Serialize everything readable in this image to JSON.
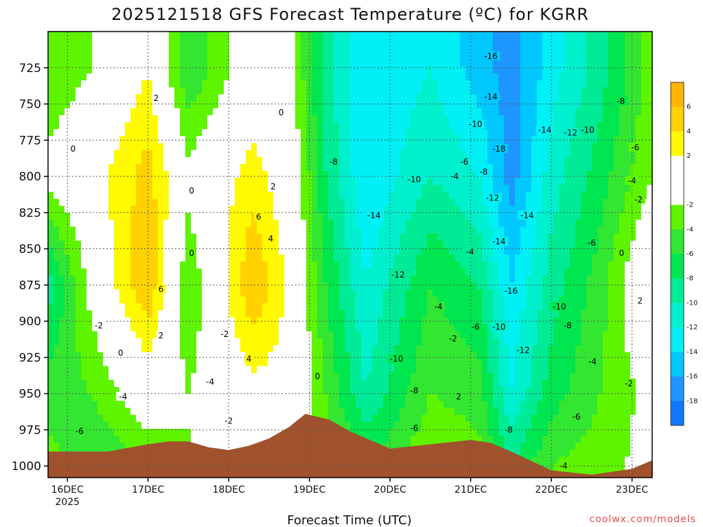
{
  "chart_data": {
    "type": "heatmap",
    "title": "2025121518 GFS Forecast Temperature (ºC) for KGRR",
    "xlabel": "Forecast Time (UTC)",
    "credit": "coolwx.com/models",
    "y_ticks": [
      725,
      750,
      775,
      800,
      825,
      850,
      875,
      900,
      925,
      950,
      975,
      1000
    ],
    "y_range": [
      700,
      1008
    ],
    "x_ticks": [
      {
        "label": "16DEC",
        "label2": "2025",
        "day": 0
      },
      {
        "label": "17DEC",
        "day": 1
      },
      {
        "label": "18DEC",
        "day": 2
      },
      {
        "label": "19DEC",
        "day": 3
      },
      {
        "label": "20DEC",
        "day": 4
      },
      {
        "label": "21DEC",
        "day": 5
      },
      {
        "label": "22DEC",
        "day": 6
      },
      {
        "label": "23DEC",
        "day": 7
      }
    ],
    "x_range_days": [
      -0.24,
      7.25
    ],
    "colorbar": [
      {
        "min": 6,
        "max": 8,
        "color": "#ffb400"
      },
      {
        "min": 4,
        "max": 6,
        "color": "#ffd200"
      },
      {
        "min": 2,
        "max": 4,
        "color": "#fffa00"
      },
      {
        "min": 0,
        "max": 2,
        "color": "#ffffff"
      },
      {
        "min": -2,
        "max": 0,
        "color": "#ffffff"
      },
      {
        "min": -4,
        "max": -2,
        "color": "#5ef400"
      },
      {
        "min": -6,
        "max": -4,
        "color": "#32e632"
      },
      {
        "min": -8,
        "max": -6,
        "color": "#00e650"
      },
      {
        "min": -10,
        "max": -8,
        "color": "#00eb96"
      },
      {
        "min": -12,
        "max": -10,
        "color": "#00f0cd"
      },
      {
        "min": -14,
        "max": -12,
        "color": "#00f0f5"
      },
      {
        "min": -16,
        "max": -14,
        "color": "#00c8ff"
      },
      {
        "min": -18,
        "max": -16,
        "color": "#1e96ff"
      },
      {
        "min": -20,
        "max": -18,
        "color": "#0f78ff"
      }
    ],
    "colorbar_labels": [
      6,
      4,
      2,
      -2,
      -4,
      -6,
      -8,
      -10,
      -12,
      -14,
      -16,
      -18
    ],
    "surface_pressure": [
      {
        "day": -0.24,
        "p": 990
      },
      {
        "day": 0.5,
        "p": 990
      },
      {
        "day": 1.0,
        "p": 985
      },
      {
        "day": 1.25,
        "p": 983
      },
      {
        "day": 1.5,
        "p": 983
      },
      {
        "day": 1.75,
        "p": 987
      },
      {
        "day": 2.0,
        "p": 989
      },
      {
        "day": 2.25,
        "p": 986
      },
      {
        "day": 2.5,
        "p": 981
      },
      {
        "day": 2.75,
        "p": 973
      },
      {
        "day": 2.95,
        "p": 964
      },
      {
        "day": 3.25,
        "p": 968
      },
      {
        "day": 3.5,
        "p": 976
      },
      {
        "day": 4.0,
        "p": 988
      },
      {
        "day": 4.5,
        "p": 985
      },
      {
        "day": 5.0,
        "p": 982
      },
      {
        "day": 5.25,
        "p": 984
      },
      {
        "day": 5.5,
        "p": 990
      },
      {
        "day": 6.0,
        "p": 1003
      },
      {
        "day": 6.5,
        "p": 1006
      },
      {
        "day": 7.0,
        "p": 1002
      },
      {
        "day": 7.25,
        "p": 996
      }
    ],
    "temperature_columns": [
      {
        "day": -0.24,
        "p": [
          725,
          800,
          875,
          950,
          1000
        ],
        "t": [
          -4,
          -1,
          -9,
          -5,
          -3
        ]
      },
      {
        "day": 0.3,
        "p": [
          725,
          800,
          875,
          950,
          1000
        ],
        "t": [
          -2,
          1,
          -1,
          -4,
          -6
        ]
      },
      {
        "day": 1.0,
        "p": [
          725,
          800,
          875,
          950,
          1000
        ],
        "t": [
          2,
          5,
          6,
          0,
          -4
        ]
      },
      {
        "day": 1.5,
        "p": [
          725,
          800,
          875,
          950,
          1000
        ],
        "t": [
          -6,
          -1,
          -4,
          -2,
          -2
        ]
      },
      {
        "day": 2.3,
        "p": [
          725,
          800,
          875,
          950,
          1000
        ],
        "t": [
          0,
          3,
          6,
          1,
          -1
        ]
      },
      {
        "day": 2.8,
        "p": [
          725,
          800,
          875,
          950,
          1000
        ],
        "t": [
          -2,
          0,
          1,
          1,
          -1
        ]
      },
      {
        "day": 3.2,
        "p": [
          725,
          800,
          875,
          950,
          1000
        ],
        "t": [
          -9,
          -8,
          -6,
          -4,
          -2
        ]
      },
      {
        "day": 3.7,
        "p": [
          725,
          800,
          875,
          950,
          1000
        ],
        "t": [
          -14,
          -14,
          -12,
          -10,
          -6
        ]
      },
      {
        "day": 4.5,
        "p": [
          725,
          800,
          875,
          950,
          1000
        ],
        "t": [
          -12,
          -10,
          -6,
          -4,
          -2
        ]
      },
      {
        "day": 5.1,
        "p": [
          725,
          800,
          875,
          950,
          1000
        ],
        "t": [
          -15,
          -12,
          -8,
          -5,
          -3
        ]
      },
      {
        "day": 5.5,
        "p": [
          725,
          800,
          875,
          950,
          1000
        ],
        "t": [
          -17,
          -17,
          -14,
          -12,
          -8
        ]
      },
      {
        "day": 6.0,
        "p": [
          725,
          800,
          875,
          950,
          1000
        ],
        "t": [
          -13,
          -11,
          -9,
          -7,
          -4
        ]
      },
      {
        "day": 6.6,
        "p": [
          725,
          800,
          875,
          950,
          1000
        ],
        "t": [
          -9,
          -7,
          -5,
          -4,
          -3
        ]
      },
      {
        "day": 7.25,
        "p": [
          725,
          800,
          875,
          950,
          1000
        ],
        "t": [
          -3,
          -2,
          2,
          -1,
          -1
        ]
      }
    ],
    "contour_labels": [
      {
        "text": "2",
        "day": 1.1,
        "p": 746
      },
      {
        "text": "6",
        "day": 1.16,
        "p": 878
      },
      {
        "text": "2",
        "day": 1.16,
        "p": 910
      },
      {
        "text": "0",
        "day": 0.07,
        "p": 781
      },
      {
        "text": "-2",
        "day": 0.39,
        "p": 903
      },
      {
        "text": "0",
        "day": 0.66,
        "p": 922
      },
      {
        "text": "-4",
        "day": 0.69,
        "p": 952
      },
      {
        "text": "-6",
        "day": 0.15,
        "p": 976
      },
      {
        "text": "0",
        "day": 1.54,
        "p": 810
      },
      {
        "text": "0",
        "day": 1.54,
        "p": 853
      },
      {
        "text": "-4",
        "day": 1.77,
        "p": 942
      },
      {
        "text": "-2",
        "day": 1.95,
        "p": 909
      },
      {
        "text": "-2",
        "day": 2.0,
        "p": 969
      },
      {
        "text": "2",
        "day": 2.55,
        "p": 807
      },
      {
        "text": "6",
        "day": 2.37,
        "p": 828
      },
      {
        "text": "4",
        "day": 2.52,
        "p": 843
      },
      {
        "text": "4",
        "day": 2.25,
        "p": 926
      },
      {
        "text": "0",
        "day": 2.65,
        "p": 756
      },
      {
        "text": "0",
        "day": 3.1,
        "p": 938
      },
      {
        "text": "-8",
        "day": 3.3,
        "p": 790
      },
      {
        "text": "-14",
        "day": 3.8,
        "p": 827
      },
      {
        "text": "-12",
        "day": 4.1,
        "p": 868
      },
      {
        "text": "-10",
        "day": 4.3,
        "p": 802
      },
      {
        "text": "-10",
        "day": 4.08,
        "p": 926
      },
      {
        "text": "-8",
        "day": 4.3,
        "p": 948
      },
      {
        "text": "-6",
        "day": 4.3,
        "p": 974
      },
      {
        "text": "-4",
        "day": 4.6,
        "p": 890
      },
      {
        "text": "-2",
        "day": 4.78,
        "p": 912
      },
      {
        "text": "2",
        "day": 4.85,
        "p": 952
      },
      {
        "text": "-6",
        "day": 4.92,
        "p": 790
      },
      {
        "text": "-4",
        "day": 4.8,
        "p": 800
      },
      {
        "text": "-8",
        "day": 5.16,
        "p": 797
      },
      {
        "text": "-10",
        "day": 5.06,
        "p": 764
      },
      {
        "text": "-4",
        "day": 4.99,
        "p": 852
      },
      {
        "text": "-6",
        "day": 5.06,
        "p": 904
      },
      {
        "text": "-10",
        "day": 5.35,
        "p": 904
      },
      {
        "text": "-12",
        "day": 5.27,
        "p": 815
      },
      {
        "text": "-14",
        "day": 5.25,
        "p": 745
      },
      {
        "text": "-16",
        "day": 5.25,
        "p": 717
      },
      {
        "text": "-18",
        "day": 5.35,
        "p": 781
      },
      {
        "text": "-14",
        "day": 5.35,
        "p": 845
      },
      {
        "text": "-14",
        "day": 5.7,
        "p": 827
      },
      {
        "text": "-16",
        "day": 5.5,
        "p": 879
      },
      {
        "text": "-12",
        "day": 5.65,
        "p": 920
      },
      {
        "text": "-8",
        "day": 5.47,
        "p": 975
      },
      {
        "text": "-14",
        "day": 5.92,
        "p": 768
      },
      {
        "text": "-12",
        "day": 6.24,
        "p": 770
      },
      {
        "text": "-10",
        "day": 6.45,
        "p": 768
      },
      {
        "text": "-8",
        "day": 6.86,
        "p": 748
      },
      {
        "text": "-6",
        "day": 7.04,
        "p": 780
      },
      {
        "text": "-4",
        "day": 7.0,
        "p": 803
      },
      {
        "text": "-2",
        "day": 7.08,
        "p": 816
      },
      {
        "text": "-6",
        "day": 6.5,
        "p": 846
      },
      {
        "text": "-10",
        "day": 6.1,
        "p": 890
      },
      {
        "text": "-8",
        "day": 6.2,
        "p": 903
      },
      {
        "text": "-4",
        "day": 6.51,
        "p": 928
      },
      {
        "text": "-6",
        "day": 6.31,
        "p": 966
      },
      {
        "text": "-2",
        "day": 6.96,
        "p": 943
      },
      {
        "text": "0",
        "day": 6.87,
        "p": 853
      },
      {
        "text": "2",
        "day": 7.1,
        "p": 886
      },
      {
        "text": "-4",
        "day": 6.15,
        "p": 1000
      }
    ]
  }
}
